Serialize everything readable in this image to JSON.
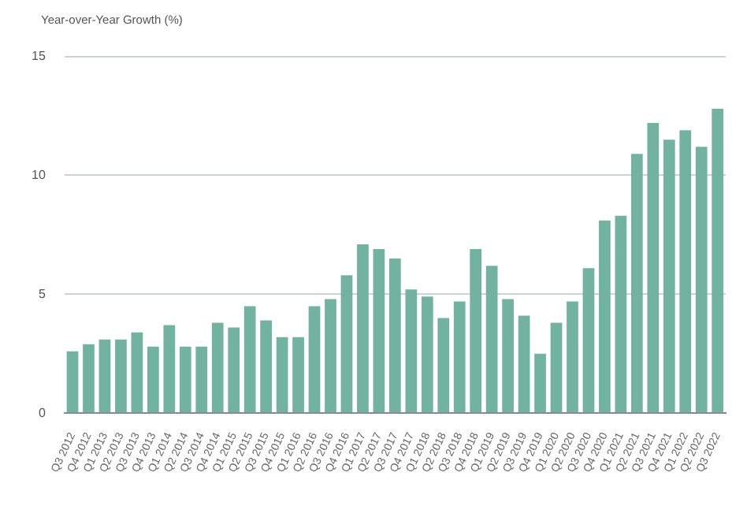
{
  "chart_data": {
    "type": "bar",
    "ylabel": "Year-over-Year Growth (%)",
    "categories": [
      "Q3 2012",
      "Q4 2012",
      "Q1 2013",
      "Q2 2013",
      "Q3 2013",
      "Q4 2013",
      "Q1 2014",
      "Q2 2014",
      "Q3 2014",
      "Q4 2014",
      "Q1 2015",
      "Q2 2015",
      "Q3 2015",
      "Q4 2015",
      "Q1 2016",
      "Q2 2016",
      "Q3 2016",
      "Q4 2016",
      "Q1 2017",
      "Q2 2017",
      "Q3 2017",
      "Q4 2017",
      "Q1 2018",
      "Q2 2018",
      "Q3 2018",
      "Q4 2018",
      "Q1 2019",
      "Q2 2019",
      "Q3 2019",
      "Q4 2019",
      "Q1 2020",
      "Q2 2020",
      "Q3 2020",
      "Q4 2020",
      "Q1 2021",
      "Q2 2021",
      "Q3 2021",
      "Q4 2021",
      "Q1 2022",
      "Q2 2022",
      "Q3 2022"
    ],
    "values": [
      2.6,
      2.9,
      3.1,
      3.1,
      3.4,
      2.8,
      3.7,
      2.8,
      2.8,
      3.8,
      3.6,
      4.5,
      3.9,
      3.2,
      3.2,
      4.5,
      4.8,
      5.8,
      7.1,
      6.9,
      6.5,
      5.2,
      4.9,
      4.0,
      4.7,
      6.9,
      6.2,
      4.8,
      4.1,
      2.5,
      3.8,
      4.7,
      6.1,
      8.1,
      8.3,
      10.9,
      12.2,
      11.5,
      11.9,
      11.2,
      12.8
    ],
    "color": "#72b3a0",
    "ylim": [
      0,
      15
    ],
    "yticks": [
      0,
      5,
      10,
      15
    ],
    "grid": "y",
    "legend": false
  }
}
